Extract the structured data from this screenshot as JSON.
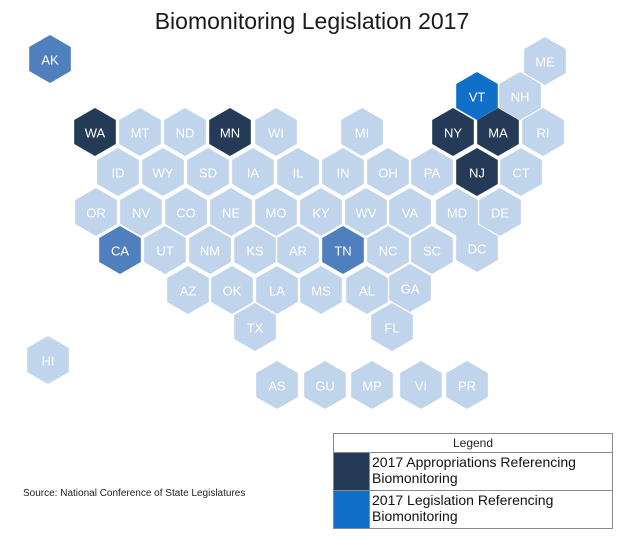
{
  "title": "Biomonitoring Legislation 2017",
  "source": "Source: National Conference of State Legislatures",
  "colors": {
    "default": "#c0d4ec",
    "default_text": "#ffffff",
    "appropriations": "#243a56",
    "legislation": "#0f6fc9",
    "ak_ca_tn": "#4f7fbd",
    "highlight_text": "#ffffff"
  },
  "legend": {
    "title": "Legend",
    "items": [
      {
        "label": "2017 Appropriations Referencing Biomonitoring",
        "color": "#243a56"
      },
      {
        "label": "2017 Legislation Referencing Biomonitoring",
        "color": "#0f6fc9"
      }
    ]
  },
  "states": [
    {
      "abbr": "AK",
      "category": "ak_ca_tn"
    },
    {
      "abbr": "ME",
      "category": "default"
    },
    {
      "abbr": "VT",
      "category": "legislation"
    },
    {
      "abbr": "NH",
      "category": "default"
    },
    {
      "abbr": "WA",
      "category": "appropriations"
    },
    {
      "abbr": "MT",
      "category": "default"
    },
    {
      "abbr": "ND",
      "category": "default"
    },
    {
      "abbr": "MN",
      "category": "appropriations"
    },
    {
      "abbr": "WI",
      "category": "default"
    },
    {
      "abbr": "MI",
      "category": "default"
    },
    {
      "abbr": "NY",
      "category": "appropriations"
    },
    {
      "abbr": "MA",
      "category": "appropriations"
    },
    {
      "abbr": "RI",
      "category": "default"
    },
    {
      "abbr": "ID",
      "category": "default"
    },
    {
      "abbr": "WY",
      "category": "default"
    },
    {
      "abbr": "SD",
      "category": "default"
    },
    {
      "abbr": "IA",
      "category": "default"
    },
    {
      "abbr": "IL",
      "category": "default"
    },
    {
      "abbr": "IN",
      "category": "default"
    },
    {
      "abbr": "OH",
      "category": "default"
    },
    {
      "abbr": "PA",
      "category": "default"
    },
    {
      "abbr": "NJ",
      "category": "appropriations"
    },
    {
      "abbr": "CT",
      "category": "default"
    },
    {
      "abbr": "OR",
      "category": "default"
    },
    {
      "abbr": "NV",
      "category": "default"
    },
    {
      "abbr": "CO",
      "category": "default"
    },
    {
      "abbr": "NE",
      "category": "default"
    },
    {
      "abbr": "MO",
      "category": "default"
    },
    {
      "abbr": "KY",
      "category": "default"
    },
    {
      "abbr": "WV",
      "category": "default"
    },
    {
      "abbr": "VA",
      "category": "default"
    },
    {
      "abbr": "MD",
      "category": "default"
    },
    {
      "abbr": "DE",
      "category": "default"
    },
    {
      "abbr": "CA",
      "category": "ak_ca_tn"
    },
    {
      "abbr": "UT",
      "category": "default"
    },
    {
      "abbr": "NM",
      "category": "default"
    },
    {
      "abbr": "KS",
      "category": "default"
    },
    {
      "abbr": "AR",
      "category": "default"
    },
    {
      "abbr": "TN",
      "category": "ak_ca_tn"
    },
    {
      "abbr": "NC",
      "category": "default"
    },
    {
      "abbr": "SC",
      "category": "default"
    },
    {
      "abbr": "DC",
      "category": "default"
    },
    {
      "abbr": "AZ",
      "category": "default"
    },
    {
      "abbr": "OK",
      "category": "default"
    },
    {
      "abbr": "LA",
      "category": "default"
    },
    {
      "abbr": "MS",
      "category": "default"
    },
    {
      "abbr": "AL",
      "category": "default"
    },
    {
      "abbr": "GA",
      "category": "default"
    },
    {
      "abbr": "TX",
      "category": "default"
    },
    {
      "abbr": "FL",
      "category": "default"
    },
    {
      "abbr": "HI",
      "category": "default"
    },
    {
      "abbr": "AS",
      "category": "default"
    },
    {
      "abbr": "GU",
      "category": "default"
    },
    {
      "abbr": "MP",
      "category": "default"
    },
    {
      "abbr": "VI",
      "category": "default"
    },
    {
      "abbr": "PR",
      "category": "default"
    }
  ]
}
